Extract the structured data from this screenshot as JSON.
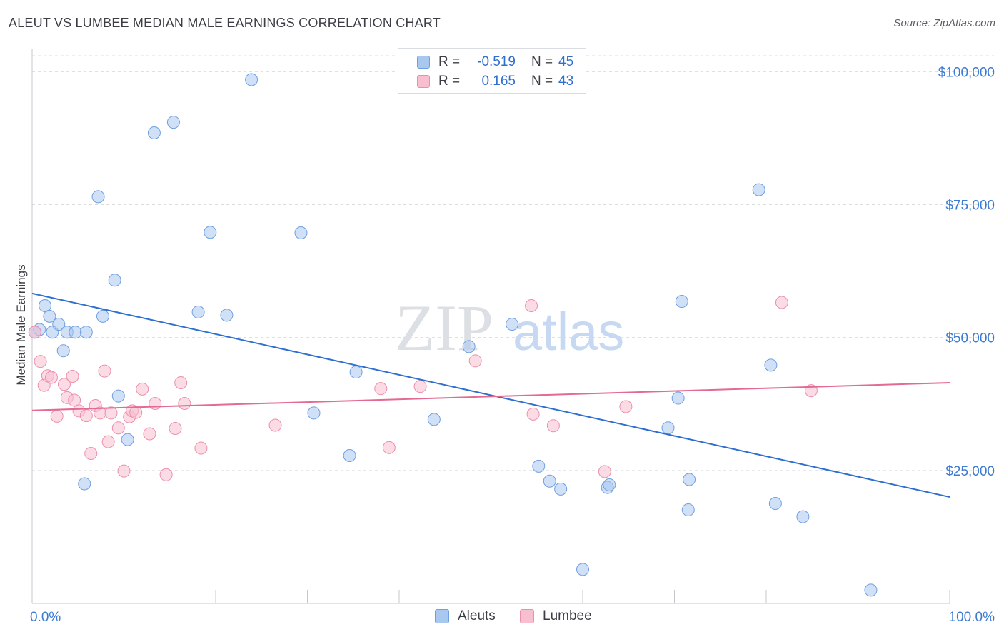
{
  "header": {
    "title": "ALEUT VS LUMBEE MEDIAN MALE EARNINGS CORRELATION CHART",
    "source": "Source: ZipAtlas.com"
  },
  "watermark": {
    "zip": "ZIP",
    "atlas": "atlas"
  },
  "legend": {
    "rows": [
      {
        "r_label": "R =",
        "r_value": "-0.519",
        "n_label": "N =",
        "n_value": "45",
        "color": "#a9c8f0",
        "border": "#6f9fe0"
      },
      {
        "r_label": "R =",
        "r_value": "0.165",
        "n_label": "N =",
        "n_value": "43",
        "color": "#f7bfd0",
        "border": "#ec8fab"
      }
    ]
  },
  "bottom_legend": {
    "series_a": "Aleuts",
    "series_b": "Lumbee"
  },
  "colors": {
    "aleut_fill": "#a9c8f0",
    "aleut_stroke": "#6f9fe0",
    "aleut_line": "#2f6fd0",
    "lumbee_fill": "#f7bfd0",
    "lumbee_stroke": "#ec8fab",
    "lumbee_line": "#e36a92",
    "tick_text": "#3d7bd1",
    "grid": "#d9dce0"
  },
  "chart_data": {
    "type": "scatter",
    "title": "ALEUT VS LUMBEE MEDIAN MALE EARNINGS CORRELATION CHART",
    "xlabel": "",
    "ylabel": "Median Male Earnings",
    "xlim": [
      0,
      100
    ],
    "ylim": [
      0,
      103000
    ],
    "x_tick_labels": [
      "0.0%",
      "100.0%"
    ],
    "y_ticks": [
      25000,
      50000,
      75000,
      100000
    ],
    "y_tick_labels": [
      "$25,000",
      "$50,000",
      "$75,000",
      "$100,000"
    ],
    "grid": true,
    "legend_position": "top-center",
    "series": [
      {
        "name": "Aleuts",
        "points": [
          [
            0.3,
            51000
          ],
          [
            1.4,
            56000
          ],
          [
            1.9,
            54000
          ],
          [
            2.2,
            51000
          ],
          [
            2.9,
            52500
          ],
          [
            3.4,
            47500
          ],
          [
            3.8,
            51000
          ],
          [
            4.7,
            51000
          ],
          [
            5.9,
            51000
          ],
          [
            5.7,
            22500
          ],
          [
            7.2,
            76500
          ],
          [
            7.7,
            54000
          ],
          [
            9.0,
            60800
          ],
          [
            9.4,
            39000
          ],
          [
            10.4,
            30800
          ],
          [
            13.3,
            88500
          ],
          [
            15.4,
            90500
          ],
          [
            18.1,
            54800
          ],
          [
            19.4,
            69800
          ],
          [
            21.2,
            54200
          ],
          [
            23.9,
            98500
          ],
          [
            29.3,
            69700
          ],
          [
            30.7,
            35800
          ],
          [
            34.6,
            27800
          ],
          [
            35.3,
            43500
          ],
          [
            43.8,
            34600
          ],
          [
            47.6,
            48300
          ],
          [
            52.3,
            52500
          ],
          [
            55.2,
            25800
          ],
          [
            56.4,
            23000
          ],
          [
            57.6,
            21500
          ],
          [
            60.0,
            6400
          ],
          [
            62.7,
            21800
          ],
          [
            62.9,
            22300
          ],
          [
            69.3,
            33000
          ],
          [
            70.4,
            38600
          ],
          [
            70.8,
            56800
          ],
          [
            71.5,
            17600
          ],
          [
            71.6,
            23300
          ],
          [
            79.2,
            77800
          ],
          [
            80.5,
            44800
          ],
          [
            81.0,
            18800
          ],
          [
            84.0,
            16300
          ],
          [
            91.4,
            2500
          ],
          [
            0.8,
            51500
          ]
        ]
      },
      {
        "name": "Lumbee",
        "points": [
          [
            0.3,
            51000
          ],
          [
            0.9,
            45500
          ],
          [
            1.3,
            41000
          ],
          [
            1.7,
            42800
          ],
          [
            2.1,
            42500
          ],
          [
            2.7,
            35200
          ],
          [
            3.5,
            41200
          ],
          [
            3.8,
            38700
          ],
          [
            4.4,
            42700
          ],
          [
            4.6,
            38200
          ],
          [
            5.1,
            36200
          ],
          [
            5.9,
            35300
          ],
          [
            6.4,
            28200
          ],
          [
            6.9,
            37200
          ],
          [
            7.4,
            35800
          ],
          [
            7.9,
            43700
          ],
          [
            8.3,
            30400
          ],
          [
            8.6,
            35800
          ],
          [
            9.4,
            33000
          ],
          [
            10.0,
            24900
          ],
          [
            10.6,
            35100
          ],
          [
            10.9,
            36200
          ],
          [
            11.3,
            35900
          ],
          [
            12.0,
            40300
          ],
          [
            12.8,
            31900
          ],
          [
            13.4,
            37600
          ],
          [
            14.6,
            24200
          ],
          [
            15.6,
            32900
          ],
          [
            16.2,
            41500
          ],
          [
            16.6,
            37600
          ],
          [
            18.4,
            29200
          ],
          [
            26.5,
            33500
          ],
          [
            38.0,
            40400
          ],
          [
            38.9,
            29300
          ],
          [
            42.3,
            40800
          ],
          [
            48.3,
            45600
          ],
          [
            54.4,
            56000
          ],
          [
            54.6,
            35600
          ],
          [
            56.8,
            33400
          ],
          [
            62.4,
            24800
          ],
          [
            64.7,
            37000
          ],
          [
            81.7,
            56600
          ],
          [
            84.9,
            40000
          ]
        ]
      }
    ],
    "trendlines": [
      {
        "name": "Aleuts",
        "x": [
          0,
          100
        ],
        "y": [
          58300,
          20000
        ]
      },
      {
        "name": "Lumbee",
        "x": [
          0,
          100
        ],
        "y": [
          36300,
          41500
        ]
      }
    ]
  }
}
